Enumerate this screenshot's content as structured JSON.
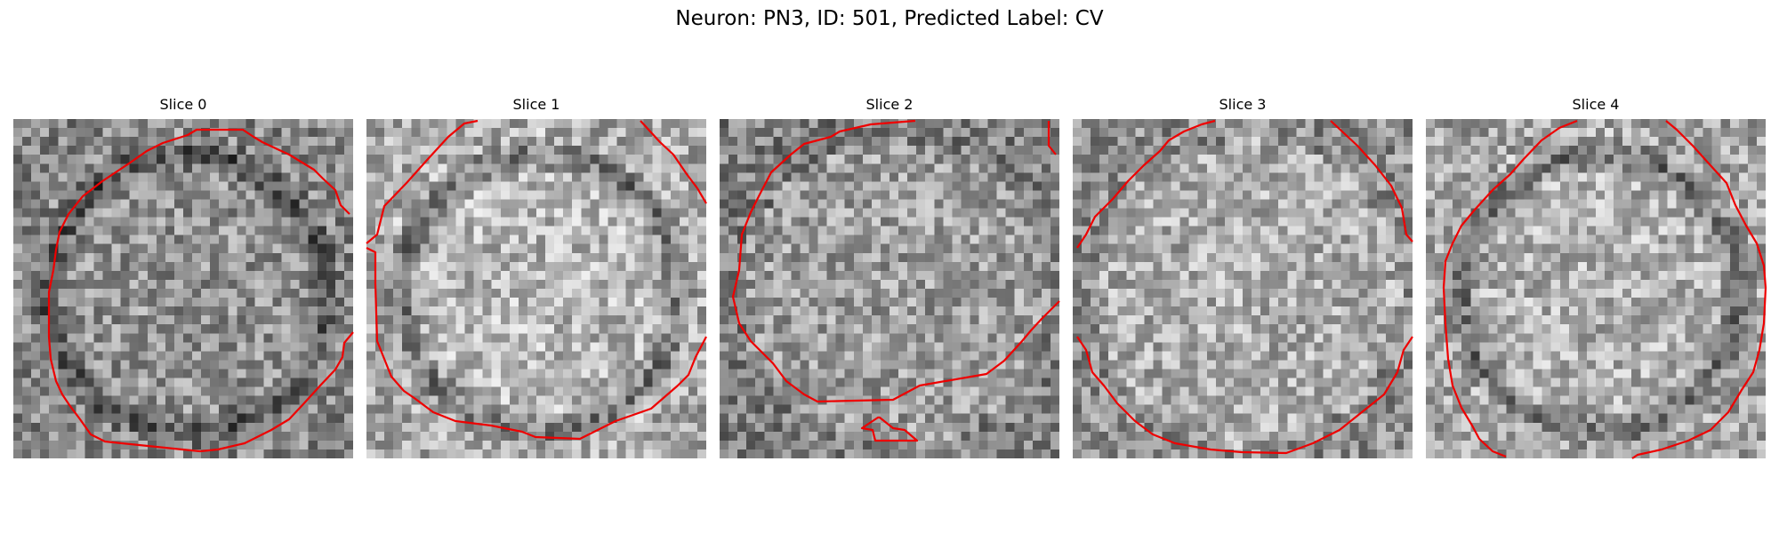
{
  "figure": {
    "suptitle": "Neuron: PN3, ID: 501, Predicted Label: CV",
    "contour_color": "#ee0000",
    "panels": [
      {
        "title": "Slice 0"
      },
      {
        "title": "Slice 1"
      },
      {
        "title": "Slice 2"
      },
      {
        "title": "Slice 3"
      },
      {
        "title": "Slice 4"
      }
    ]
  }
}
